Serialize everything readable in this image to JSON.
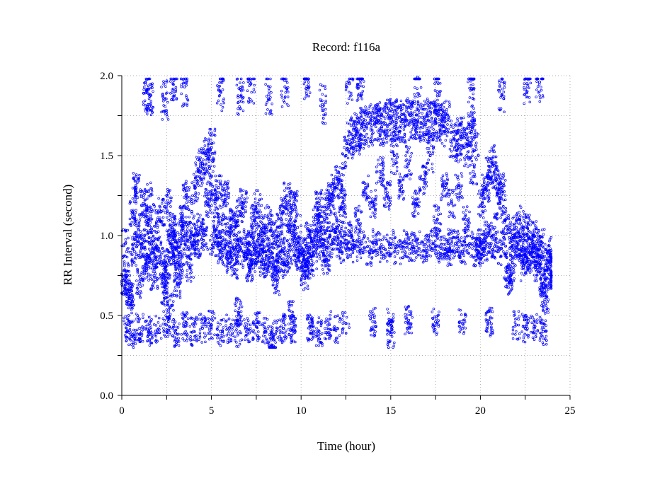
{
  "chart_data": {
    "type": "scatter",
    "title": "Record:  f116a",
    "xlabel": "Time (hour)",
    "ylabel": "RR Interval (second)",
    "xlim": [
      0,
      25
    ],
    "ylim": [
      0,
      2.0
    ],
    "x_ticks": [
      0,
      5,
      10,
      15,
      20,
      25
    ],
    "x_tick_labels": [
      "0",
      "5",
      "10",
      "15",
      "20",
      "25"
    ],
    "y_ticks": [
      0,
      0.5,
      1.0,
      1.5,
      2.0
    ],
    "y_tick_labels": [
      "0.0",
      "0.5",
      "1.0",
      "1.5",
      "2.0"
    ],
    "grid": true,
    "marker_color": "#0000ff",
    "series": [
      {
        "name": "",
        "points": [
          [
            0.1,
            0.72
          ],
          [
            0.3,
            0.75
          ],
          [
            0.5,
            0.62
          ],
          [
            0.7,
            0.9
          ],
          [
            0.9,
            1.05
          ],
          [
            1.1,
            0.95
          ],
          [
            1.3,
            0.8
          ],
          [
            1.5,
            1.1
          ],
          [
            1.7,
            0.92
          ],
          [
            1.9,
            0.85
          ],
          [
            2.1,
            0.9
          ],
          [
            2.3,
            0.75
          ],
          [
            2.5,
            0.82
          ],
          [
            2.7,
            0.95
          ],
          [
            2.9,
            0.88
          ],
          [
            3.1,
            0.7
          ],
          [
            3.3,
            0.9
          ],
          [
            3.5,
            1.0
          ],
          [
            3.7,
            0.93
          ],
          [
            3.9,
            1.15
          ],
          [
            4.1,
            1.3
          ],
          [
            4.3,
            1.4
          ],
          [
            4.5,
            1.45
          ],
          [
            4.7,
            1.5
          ],
          [
            4.9,
            1.42
          ],
          [
            5.1,
            0.95
          ],
          [
            5.3,
            1.0
          ],
          [
            5.5,
            0.9
          ],
          [
            5.7,
            0.92
          ],
          [
            5.9,
            0.85
          ],
          [
            6.1,
            0.88
          ],
          [
            6.3,
            0.82
          ],
          [
            6.5,
            0.9
          ],
          [
            6.7,
            0.95
          ],
          [
            6.9,
            0.87
          ],
          [
            7.1,
            0.8
          ],
          [
            7.3,
            0.85
          ],
          [
            7.5,
            0.92
          ],
          [
            7.7,
            0.88
          ],
          [
            7.9,
            0.83
          ],
          [
            8.1,
            0.86
          ],
          [
            8.3,
            0.9
          ],
          [
            8.5,
            0.78
          ],
          [
            8.7,
            0.85
          ],
          [
            8.9,
            0.9
          ],
          [
            9.1,
            0.82
          ],
          [
            9.3,
            0.88
          ],
          [
            9.5,
            1.0
          ],
          [
            9.7,
            0.92
          ],
          [
            9.9,
            0.87
          ],
          [
            10.1,
            0.8
          ],
          [
            10.3,
            0.85
          ],
          [
            10.5,
            0.82
          ],
          [
            10.7,
            0.88
          ],
          [
            10.9,
            0.95
          ],
          [
            11.1,
            1.05
          ],
          [
            11.3,
            1.1
          ],
          [
            11.5,
            1.2
          ],
          [
            11.7,
            1.25
          ],
          [
            11.9,
            1.3
          ],
          [
            12.1,
            1.35
          ],
          [
            12.3,
            1.2
          ],
          [
            12.5,
            1.5
          ],
          [
            12.7,
            1.6
          ],
          [
            12.9,
            1.62
          ],
          [
            13.1,
            1.65
          ],
          [
            13.3,
            1.63
          ],
          [
            13.5,
            1.68
          ],
          [
            13.7,
            1.7
          ],
          [
            13.9,
            1.66
          ],
          [
            14.1,
            1.7
          ],
          [
            14.3,
            1.72
          ],
          [
            14.5,
            1.68
          ],
          [
            14.7,
            1.7
          ],
          [
            14.9,
            1.73
          ],
          [
            15.1,
            1.71
          ],
          [
            15.3,
            1.72
          ],
          [
            15.5,
            1.74
          ],
          [
            15.7,
            1.7
          ],
          [
            15.9,
            1.72
          ],
          [
            16.1,
            1.75
          ],
          [
            16.3,
            1.73
          ],
          [
            16.5,
            1.72
          ],
          [
            16.7,
            1.7
          ],
          [
            16.9,
            1.74
          ],
          [
            17.1,
            1.72
          ],
          [
            17.3,
            1.71
          ],
          [
            17.5,
            1.73
          ],
          [
            17.7,
            1.7
          ],
          [
            17.9,
            1.68
          ],
          [
            18.1,
            1.72
          ],
          [
            18.3,
            0.9
          ],
          [
            18.5,
            1.6
          ],
          [
            18.7,
            1.58
          ],
          [
            18.9,
            1.62
          ],
          [
            19.1,
            1.55
          ],
          [
            19.3,
            1.6
          ],
          [
            19.5,
            1.65
          ],
          [
            19.7,
            1.62
          ],
          [
            19.9,
            0.9
          ],
          [
            20.1,
            1.2
          ],
          [
            20.3,
            1.3
          ],
          [
            20.5,
            1.4
          ],
          [
            20.7,
            1.45
          ],
          [
            20.9,
            1.35
          ],
          [
            21.1,
            1.2
          ],
          [
            21.3,
            0.95
          ],
          [
            21.5,
            0.8
          ],
          [
            21.7,
            0.75
          ],
          [
            21.9,
            0.9
          ],
          [
            22.1,
            0.95
          ],
          [
            22.3,
            0.92
          ],
          [
            22.5,
            0.88
          ],
          [
            22.7,
            0.85
          ],
          [
            22.9,
            0.9
          ],
          [
            23.1,
            0.92
          ],
          [
            23.3,
            0.87
          ],
          [
            23.5,
            0.7
          ],
          [
            23.7,
            0.78
          ],
          [
            23.9,
            0.82
          ],
          [
            0.2,
            0.95
          ],
          [
            0.4,
            0.58
          ],
          [
            0.6,
            1.15
          ],
          [
            0.8,
            1.3
          ],
          [
            1.0,
            0.7
          ],
          [
            1.2,
            1.2
          ],
          [
            1.4,
            0.88
          ],
          [
            1.6,
            1.25
          ],
          [
            1.8,
            0.75
          ],
          [
            2.0,
            1.1
          ],
          [
            2.2,
            1.15
          ],
          [
            2.4,
            0.65
          ],
          [
            2.6,
            1.2
          ],
          [
            2.8,
            1.05
          ],
          [
            3.0,
            1.0
          ],
          [
            3.2,
            0.82
          ],
          [
            3.4,
            1.1
          ],
          [
            3.6,
            1.25
          ],
          [
            3.8,
            0.8
          ],
          [
            4.0,
            1.0
          ],
          [
            4.2,
            0.95
          ],
          [
            4.4,
            1.05
          ],
          [
            4.6,
            1.0
          ],
          [
            4.8,
            1.2
          ],
          [
            5.0,
            1.55
          ],
          [
            5.2,
            1.2
          ],
          [
            5.4,
            1.3
          ],
          [
            5.6,
            1.1
          ],
          [
            5.8,
            1.25
          ],
          [
            6.0,
            1.05
          ],
          [
            6.2,
            1.1
          ],
          [
            6.4,
            1.0
          ],
          [
            6.6,
            1.15
          ],
          [
            6.8,
            1.2
          ],
          [
            7.0,
            0.95
          ],
          [
            7.2,
            1.0
          ],
          [
            7.4,
            1.1
          ],
          [
            7.6,
            1.2
          ],
          [
            7.8,
            1.0
          ],
          [
            8.0,
            1.05
          ],
          [
            8.2,
            1.1
          ],
          [
            8.4,
            1.0
          ],
          [
            8.6,
            0.72
          ],
          [
            8.8,
            1.05
          ],
          [
            9.0,
            1.15
          ],
          [
            9.2,
            1.25
          ],
          [
            9.4,
            1.1
          ],
          [
            9.6,
            1.2
          ],
          [
            9.8,
            1.05
          ],
          [
            10.0,
            0.9
          ],
          [
            10.2,
            0.75
          ],
          [
            10.4,
            1.0
          ],
          [
            10.6,
            0.95
          ],
          [
            10.8,
            1.1
          ],
          [
            11.0,
            1.2
          ],
          [
            11.2,
            0.9
          ],
          [
            11.4,
            0.85
          ],
          [
            11.6,
            1.0
          ],
          [
            11.8,
            0.95
          ],
          [
            12.0,
            1.05
          ],
          [
            12.2,
            0.9
          ],
          [
            12.4,
            1.0
          ],
          [
            12.6,
            0.95
          ],
          [
            12.8,
            1.0
          ],
          [
            13.0,
            0.92
          ],
          [
            13.2,
            1.1
          ],
          [
            13.4,
            0.95
          ],
          [
            13.6,
            1.3
          ],
          [
            13.8,
            0.9
          ],
          [
            14.0,
            1.2
          ],
          [
            14.2,
            0.95
          ],
          [
            14.4,
            1.4
          ],
          [
            14.6,
            0.92
          ],
          [
            14.8,
            1.25
          ],
          [
            15.0,
            0.95
          ],
          [
            15.2,
            1.5
          ],
          [
            15.4,
            0.9
          ],
          [
            15.6,
            1.3
          ],
          [
            15.8,
            0.95
          ],
          [
            16.0,
            1.45
          ],
          [
            16.2,
            0.93
          ],
          [
            16.4,
            1.2
          ],
          [
            16.6,
            0.95
          ],
          [
            16.8,
            1.35
          ],
          [
            17.0,
            0.92
          ],
          [
            17.2,
            1.5
          ],
          [
            17.4,
            0.95
          ],
          [
            17.6,
            1.1
          ],
          [
            17.8,
            0.92
          ],
          [
            18.0,
            1.3
          ],
          [
            18.2,
            0.95
          ],
          [
            18.4,
            1.2
          ],
          [
            18.6,
            0.95
          ],
          [
            18.8,
            1.3
          ],
          [
            19.0,
            0.9
          ],
          [
            19.2,
            1.1
          ],
          [
            19.4,
            0.95
          ],
          [
            19.6,
            1.4
          ],
          [
            19.8,
            0.9
          ],
          [
            20.0,
            0.95
          ],
          [
            20.2,
            0.92
          ],
          [
            20.4,
            1.0
          ],
          [
            20.6,
            0.95
          ],
          [
            20.8,
            1.05
          ],
          [
            21.0,
            0.9
          ],
          [
            21.2,
            1.3
          ],
          [
            21.4,
            1.1
          ],
          [
            21.6,
            0.72
          ],
          [
            21.8,
            1.0
          ],
          [
            22.0,
            1.05
          ],
          [
            22.2,
            1.1
          ],
          [
            22.4,
            0.8
          ],
          [
            22.6,
            1.05
          ],
          [
            22.8,
            0.95
          ],
          [
            23.0,
            1.0
          ],
          [
            23.2,
            0.8
          ],
          [
            23.4,
            0.95
          ],
          [
            23.6,
            0.6
          ],
          [
            23.8,
            0.9
          ],
          [
            23.95,
            0.75
          ],
          [
            0.3,
            0.4
          ],
          [
            0.6,
            0.38
          ],
          [
            1.0,
            0.42
          ],
          [
            1.5,
            0.4
          ],
          [
            2.0,
            0.41
          ],
          [
            2.5,
            0.44
          ],
          [
            3.0,
            0.39
          ],
          [
            3.5,
            0.43
          ],
          [
            4.0,
            0.4
          ],
          [
            4.5,
            0.42
          ],
          [
            5.0,
            0.44
          ],
          [
            5.5,
            0.4
          ],
          [
            6.0,
            0.42
          ],
          [
            6.5,
            0.39
          ],
          [
            7.0,
            0.41
          ],
          [
            7.5,
            0.43
          ],
          [
            8.0,
            0.4
          ],
          [
            8.5,
            0.38
          ],
          [
            9.0,
            0.42
          ],
          [
            9.5,
            0.41
          ],
          [
            10.5,
            0.43
          ],
          [
            11.0,
            0.4
          ],
          [
            11.5,
            0.44
          ],
          [
            12.0,
            0.42
          ],
          [
            12.5,
            0.45
          ],
          [
            14.0,
            0.46
          ],
          [
            15.0,
            0.45
          ],
          [
            16.0,
            0.47
          ],
          [
            17.5,
            0.46
          ],
          [
            19.0,
            0.45
          ],
          [
            20.5,
            0.46
          ],
          [
            22.0,
            0.44
          ],
          [
            22.5,
            0.42
          ],
          [
            23.0,
            0.43
          ],
          [
            23.5,
            0.4
          ],
          [
            8.4,
            0.3
          ],
          [
            15.0,
            0.38
          ],
          [
            9.5,
            0.5
          ],
          [
            2.7,
            0.55
          ],
          [
            6.5,
            0.52
          ],
          [
            1.4,
            1.9
          ],
          [
            1.6,
            1.88
          ],
          [
            2.4,
            1.85
          ],
          [
            2.9,
            1.97
          ],
          [
            3.5,
            1.93
          ],
          [
            5.5,
            1.9
          ],
          [
            6.6,
            1.87
          ],
          [
            7.2,
            1.95
          ],
          [
            8.2,
            1.88
          ],
          [
            9.1,
            1.93
          ],
          [
            10.3,
            1.98
          ],
          [
            11.2,
            1.82
          ],
          [
            12.7,
            1.95
          ],
          [
            13.3,
            1.97
          ],
          [
            16.5,
            1.99
          ],
          [
            17.6,
            1.9
          ],
          [
            19.5,
            1.92
          ],
          [
            21.2,
            1.88
          ],
          [
            22.6,
            1.95
          ],
          [
            23.3,
            1.96
          ]
        ]
      }
    ]
  }
}
